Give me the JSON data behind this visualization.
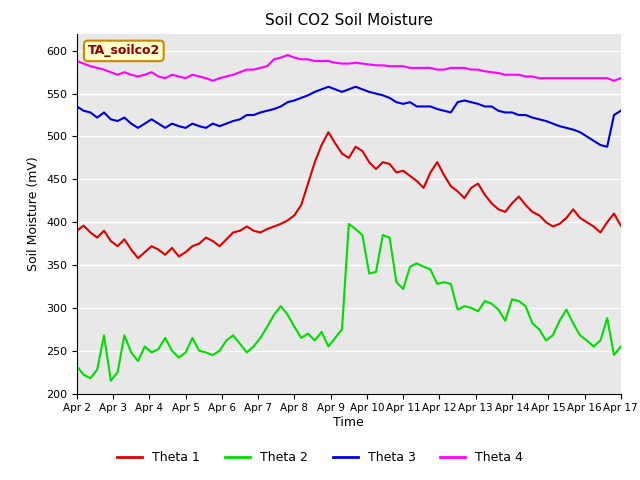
{
  "title": "Soil CO2 Soil Moisture",
  "xlabel": "Time",
  "ylabel": "Soil Moisture (mV)",
  "ylim": [
    200,
    620
  ],
  "yticks": [
    200,
    250,
    300,
    350,
    400,
    450,
    500,
    550,
    600
  ],
  "xtick_labels": [
    "Apr 2",
    "Apr 3",
    "Apr 4",
    "Apr 5",
    "Apr 6",
    "Apr 7",
    "Apr 8",
    "Apr 9",
    "Apr 10",
    "Apr 11",
    "Apr 12",
    "Apr 13",
    "Apr 14",
    "Apr 15",
    "Apr 16",
    "Apr 17"
  ],
  "label_box_text": "TA_soilco2",
  "background_color": "#e8e8e8",
  "colors": {
    "theta1": "#dd0000",
    "theta2": "#00dd00",
    "theta3": "#0000dd",
    "theta4": "#ff00ff"
  },
  "legend_labels": [
    "Theta 1",
    "Theta 2",
    "Theta 3",
    "Theta 4"
  ],
  "theta1": [
    390,
    396,
    388,
    382,
    390,
    378,
    372,
    380,
    368,
    358,
    365,
    372,
    368,
    362,
    370,
    360,
    365,
    372,
    375,
    382,
    378,
    372,
    380,
    388,
    390,
    395,
    390,
    388,
    392,
    395,
    398,
    402,
    408,
    420,
    445,
    470,
    490,
    505,
    492,
    480,
    475,
    488,
    483,
    470,
    462,
    470,
    468,
    458,
    460,
    454,
    448,
    440,
    458,
    470,
    455,
    442,
    436,
    428,
    440,
    445,
    432,
    422,
    415,
    412,
    422,
    430,
    420,
    412,
    408,
    400,
    395,
    398,
    405,
    415,
    405,
    400,
    395,
    388,
    400,
    410,
    396
  ],
  "theta2": [
    232,
    222,
    218,
    228,
    268,
    215,
    225,
    268,
    248,
    238,
    255,
    248,
    252,
    265,
    250,
    242,
    248,
    265,
    250,
    248,
    245,
    250,
    262,
    268,
    258,
    248,
    255,
    265,
    278,
    292,
    302,
    292,
    278,
    265,
    270,
    262,
    272,
    255,
    265,
    275,
    398,
    392,
    385,
    340,
    342,
    385,
    382,
    330,
    322,
    348,
    352,
    348,
    345,
    328,
    330,
    328,
    298,
    302,
    300,
    296,
    308,
    305,
    298,
    285,
    310,
    308,
    302,
    282,
    275,
    262,
    268,
    285,
    298,
    282,
    268,
    262,
    255,
    262,
    288,
    245,
    255
  ],
  "theta3": [
    535,
    530,
    528,
    522,
    528,
    520,
    518,
    522,
    515,
    510,
    515,
    520,
    515,
    510,
    515,
    512,
    510,
    515,
    512,
    510,
    515,
    512,
    515,
    518,
    520,
    525,
    525,
    528,
    530,
    532,
    535,
    540,
    542,
    545,
    548,
    552,
    555,
    558,
    555,
    552,
    555,
    558,
    555,
    552,
    550,
    548,
    545,
    540,
    538,
    540,
    535,
    535,
    535,
    532,
    530,
    528,
    540,
    542,
    540,
    538,
    535,
    535,
    530,
    528,
    528,
    525,
    525,
    522,
    520,
    518,
    515,
    512,
    510,
    508,
    505,
    500,
    495,
    490,
    488,
    525,
    530
  ],
  "theta4": [
    588,
    585,
    582,
    580,
    578,
    575,
    572,
    575,
    572,
    570,
    572,
    575,
    570,
    568,
    572,
    570,
    568,
    572,
    570,
    568,
    565,
    568,
    570,
    572,
    575,
    578,
    578,
    580,
    582,
    590,
    592,
    595,
    592,
    590,
    590,
    588,
    588,
    588,
    586,
    585,
    585,
    586,
    585,
    584,
    583,
    583,
    582,
    582,
    582,
    580,
    580,
    580,
    580,
    578,
    578,
    580,
    580,
    580,
    578,
    578,
    576,
    575,
    574,
    572,
    572,
    572,
    570,
    570,
    568,
    568,
    568,
    568,
    568,
    568,
    568,
    568,
    568,
    568,
    568,
    565,
    568
  ]
}
